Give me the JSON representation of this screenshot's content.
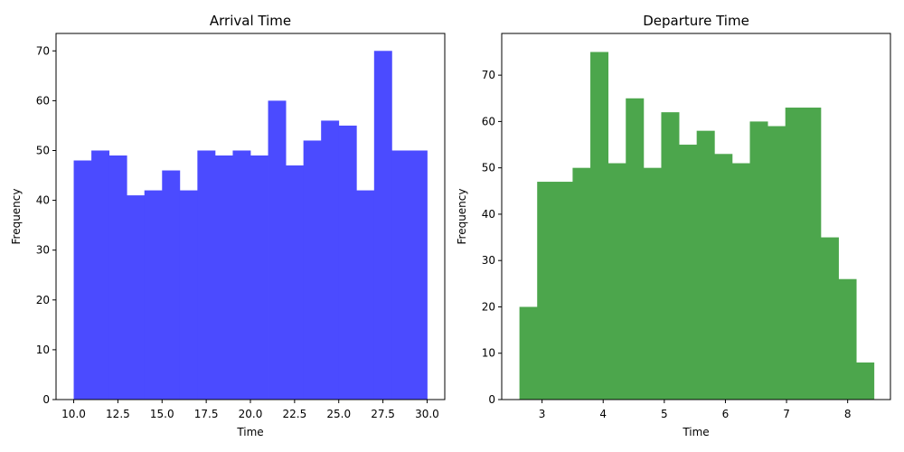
{
  "chart_data": [
    {
      "type": "bar",
      "title": "Arrival Time",
      "xlabel": "Time",
      "ylabel": "Frequency",
      "color": "#4b4bff",
      "xlim": [
        9.0,
        31.0
      ],
      "ylim": [
        0,
        73.5
      ],
      "xticks": [
        10.0,
        12.5,
        15.0,
        17.5,
        20.0,
        22.5,
        25.0,
        27.5,
        30.0
      ],
      "xtick_labels": [
        "10.0",
        "12.5",
        "15.0",
        "17.5",
        "20.0",
        "22.5",
        "25.0",
        "27.5",
        "30.0"
      ],
      "yticks": [
        0,
        10,
        20,
        30,
        40,
        50,
        60,
        70
      ],
      "ytick_labels": [
        "0",
        "10",
        "20",
        "30",
        "40",
        "50",
        "60",
        "70"
      ],
      "bin_edges": [
        10,
        11,
        12,
        13,
        14,
        15,
        16,
        17,
        18,
        19,
        20,
        21,
        22,
        23,
        24,
        25,
        26,
        27,
        28,
        29,
        30
      ],
      "values": [
        48,
        50,
        49,
        41,
        42,
        46,
        42,
        50,
        49,
        50,
        49,
        60,
        47,
        52,
        56,
        55,
        42,
        70,
        50,
        50
      ],
      "grid": false
    },
    {
      "type": "bar",
      "title": "Departure Time",
      "xlabel": "Time",
      "ylabel": "Frequency",
      "color": "#4ca64c",
      "xlim": [
        2.34,
        8.7
      ],
      "ylim": [
        0,
        79
      ],
      "xticks": [
        3,
        4,
        5,
        6,
        7,
        8
      ],
      "xtick_labels": [
        "3",
        "4",
        "5",
        "6",
        "7",
        "8"
      ],
      "yticks": [
        0,
        10,
        20,
        30,
        40,
        50,
        60,
        70
      ],
      "ytick_labels": [
        "0",
        "10",
        "20",
        "30",
        "40",
        "50",
        "60",
        "70"
      ],
      "bin_edges": [
        2.63,
        2.92,
        3.21,
        3.5,
        3.79,
        4.08,
        4.37,
        4.66,
        4.95,
        5.24,
        5.53,
        5.82,
        6.11,
        6.4,
        6.69,
        6.98,
        7.27,
        7.56,
        7.85,
        8.14,
        8.43
      ],
      "values": [
        20,
        47,
        47,
        50,
        75,
        51,
        65,
        50,
        62,
        55,
        58,
        53,
        51,
        60,
        59,
        63,
        63,
        35,
        26,
        8
      ],
      "grid": false
    }
  ]
}
